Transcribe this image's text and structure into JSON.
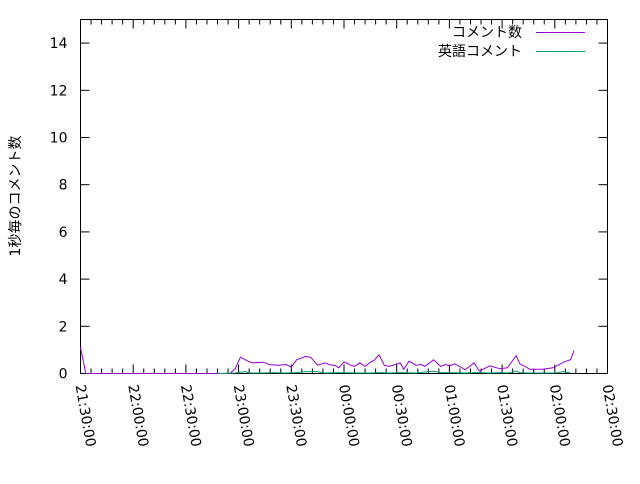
{
  "chart_data": {
    "type": "line",
    "title": "",
    "xlabel": "",
    "ylabel": "1秒毎のコメント数",
    "ylim": [
      0,
      15
    ],
    "yticks": [
      "0",
      "2",
      "4",
      "6",
      "8",
      "10",
      "12",
      "14"
    ],
    "xlim": [
      "21:30:00",
      "02:30:00"
    ],
    "xticks": [
      "21:30:00",
      "22:00:00",
      "22:30:00",
      "23:00:00",
      "23:30:00",
      "00:00:00",
      "00:30:00",
      "01:00:00",
      "01:30:00",
      "02:00:00",
      "02:30:00"
    ],
    "grid": false,
    "legend_position": "top-right",
    "series": [
      {
        "name": "コメント数",
        "color": "#9400d3",
        "x": [
          "21:30",
          "21:33",
          "22:48",
          "22:55",
          "22:58",
          "23:01",
          "23:06",
          "23:08",
          "23:14",
          "23:18",
          "23:23",
          "23:27",
          "23:30",
          "23:33",
          "23:38",
          "23:41",
          "23:45",
          "23:49",
          "23:52",
          "23:55",
          "23:57",
          "00:00",
          "00:04",
          "00:06",
          "00:09",
          "00:12",
          "00:15",
          "00:17",
          "00:20",
          "00:23",
          "00:26",
          "00:32",
          "00:34",
          "00:37",
          "00:41",
          "00:44",
          "00:46",
          "00:51",
          "00:55",
          "00:58",
          "01:00",
          "01:03",
          "01:09",
          "01:14",
          "01:17",
          "01:23",
          "01:29",
          "01:33",
          "01:38",
          "01:40",
          "01:46",
          "01:53",
          "01:59",
          "02:05",
          "02:09",
          "02:11"
        ],
        "values": [
          1.1,
          0,
          0,
          0,
          0.2,
          0.69,
          0.5,
          0.45,
          0.48,
          0.37,
          0.35,
          0.38,
          0.27,
          0.58,
          0.72,
          0.69,
          0.35,
          0.45,
          0.37,
          0.34,
          0.24,
          0.49,
          0.35,
          0.3,
          0.45,
          0.3,
          0.48,
          0.55,
          0.79,
          0.34,
          0.31,
          0.45,
          0.18,
          0.52,
          0.35,
          0.38,
          0.3,
          0.58,
          0.3,
          0.38,
          0.32,
          0.41,
          0.16,
          0.45,
          0.1,
          0.32,
          0.2,
          0.24,
          0.76,
          0.41,
          0.18,
          0.18,
          0.24,
          0.48,
          0.59,
          0.97
        ]
      },
      {
        "name": "英語コメント",
        "color": "#009e73",
        "x": [
          "22:48",
          "22:58",
          "23:01",
          "23:04",
          "23:06",
          "23:14",
          "23:18",
          "23:27",
          "23:33",
          "23:38",
          "23:45",
          "23:49",
          "23:57",
          "00:09",
          "00:15",
          "00:20",
          "00:26",
          "00:32",
          "00:41",
          "00:51",
          "00:55",
          "01:00",
          "01:09",
          "01:14",
          "01:17",
          "01:23",
          "01:29",
          "01:33",
          "01:38",
          "01:40",
          "01:46",
          "01:53",
          "02:00",
          "02:05",
          "02:09"
        ],
        "values": [
          0,
          0.02,
          0.06,
          0.08,
          0.02,
          0.02,
          0.04,
          0.02,
          0.04,
          0.08,
          0.08,
          0.02,
          0.04,
          0.02,
          0.02,
          0.04,
          0.02,
          0.04,
          0.02,
          0.1,
          0.04,
          0.04,
          0.02,
          0.04,
          0.04,
          0.02,
          0.04,
          0.02,
          0.1,
          0.04,
          0.02,
          0.02,
          0.02,
          0.08,
          0.02
        ]
      }
    ]
  }
}
